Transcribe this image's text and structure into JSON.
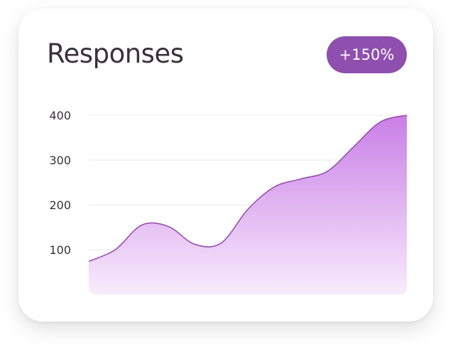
{
  "card": {
    "title": "Responses",
    "badge": "+150%"
  },
  "colors": {
    "accent": "#8e4fae",
    "line": "#9a4fb0",
    "fill_top": "#c97fe6",
    "fill_bottom": "#faf0fd",
    "grid": "#eeeeee",
    "text": "#3a3238"
  },
  "chart_data": {
    "type": "area",
    "title": "Responses",
    "xlabel": "",
    "ylabel": "",
    "ylim": [
      0,
      400
    ],
    "yticks": [
      100,
      200,
      300,
      400
    ],
    "grid": true,
    "series": [
      {
        "values": [
          74,
          100,
          155,
          152,
          112,
          115,
          190,
          240,
          258,
          275,
          330,
          385,
          400
        ]
      }
    ]
  }
}
